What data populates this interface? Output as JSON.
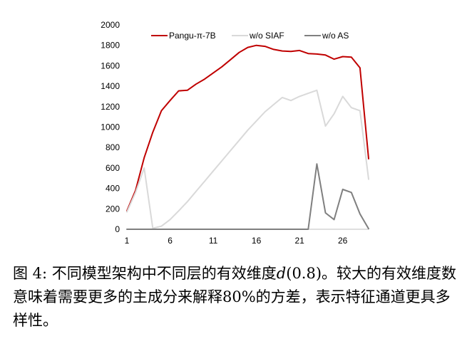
{
  "chart_data": {
    "type": "line",
    "title": "",
    "xlabel": "",
    "ylabel": "",
    "xlim": [
      1,
      29
    ],
    "ylim": [
      0,
      2000
    ],
    "x_ticks": [
      1,
      6,
      11,
      16,
      21,
      26
    ],
    "y_ticks": [
      0,
      200,
      400,
      600,
      800,
      1000,
      1200,
      1400,
      1600,
      1800,
      2000
    ],
    "grid": false,
    "legend_position": "top",
    "x": [
      1,
      2,
      3,
      4,
      5,
      6,
      7,
      8,
      9,
      10,
      11,
      12,
      13,
      14,
      15,
      16,
      17,
      18,
      19,
      20,
      21,
      22,
      23,
      24,
      25,
      26,
      27,
      28,
      29
    ],
    "series": [
      {
        "name": "Pangu-π-7B",
        "color": "#c00000",
        "values": [
          180,
          380,
          700,
          950,
          1160,
          1260,
          1355,
          1360,
          1420,
          1470,
          1530,
          1590,
          1660,
          1730,
          1780,
          1800,
          1790,
          1760,
          1745,
          1740,
          1750,
          1720,
          1715,
          1705,
          1665,
          1690,
          1685,
          1580,
          690
        ]
      },
      {
        "name": "w/o SIAF",
        "color": "#d9d9d9",
        "values": [
          170,
          360,
          600,
          10,
          30,
          95,
          180,
          270,
          370,
          470,
          570,
          670,
          770,
          870,
          970,
          1060,
          1150,
          1220,
          1290,
          1260,
          1300,
          1330,
          1360,
          1010,
          1130,
          1300,
          1190,
          1160,
          490
        ]
      },
      {
        "name": "w/o AS",
        "color": "#7f7f7f",
        "values": [
          0,
          0,
          0,
          0,
          0,
          0,
          0,
          0,
          0,
          0,
          0,
          0,
          0,
          0,
          0,
          0,
          0,
          0,
          0,
          0,
          0,
          0,
          640,
          160,
          95,
          390,
          360,
          150,
          5
        ]
      }
    ]
  },
  "caption": {
    "part1": "图 4: 不同模型架构中不同层的有效维度",
    "math": "d",
    "part2": "(0.8)。较大的有效维度数意味着需要更多的主成分来解释80%的方差，表示特征通道更具多样性。"
  }
}
